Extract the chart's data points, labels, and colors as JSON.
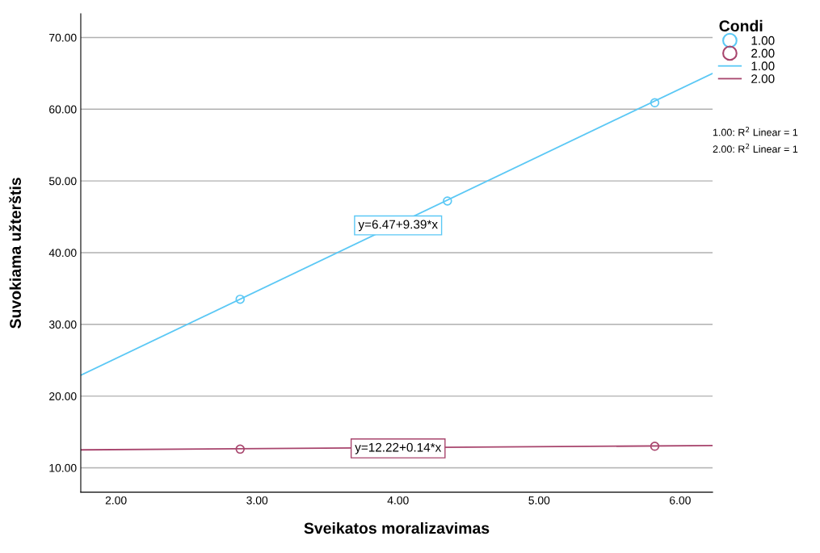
{
  "chart_data": {
    "type": "scatter",
    "xlabel": "Sveikatos moralizavimas",
    "ylabel": "Suvokiama užterštis",
    "legend_title": "Condi",
    "series": [
      {
        "name": "1.00",
        "color": "#5bc8f5",
        "x": [
          2.88,
          4.35,
          5.82
        ],
        "values": [
          33.5,
          47.2,
          60.9
        ]
      },
      {
        "name": "2.00",
        "color": "#a8456d",
        "x": [
          2.88,
          5.82
        ],
        "values": [
          12.6,
          13.0
        ]
      },
      {
        "name": "1.00",
        "type": "line",
        "marker": "none",
        "color": "#5bc8f5",
        "x": [
          1.75,
          6.23
        ],
        "values": [
          22.9,
          65.0
        ]
      },
      {
        "name": "2.00",
        "type": "line",
        "marker": "none",
        "color": "#a8456d",
        "x": [
          1.75,
          6.23
        ],
        "values": [
          12.5,
          13.1
        ]
      }
    ],
    "xlim": [
      1.75,
      6.23
    ],
    "xticks": [
      {
        "value": 2,
        "label": "2.00"
      },
      {
        "value": 3,
        "label": "3.00"
      },
      {
        "value": 4,
        "label": "4.00"
      },
      {
        "value": 5,
        "label": "5.00"
      },
      {
        "value": 6,
        "label": "6.00"
      }
    ],
    "ylim": [
      6.6,
      73.3
    ],
    "yticks": [
      {
        "value": 10,
        "label": "10.00"
      },
      {
        "value": 20,
        "label": "20.00"
      },
      {
        "value": 30,
        "label": "30.00"
      },
      {
        "value": 40,
        "label": "40.00"
      },
      {
        "value": 50,
        "label": "50.00"
      },
      {
        "value": 60,
        "label": "60.00"
      },
      {
        "value": 70,
        "label": "70.00"
      }
    ],
    "grid": "y",
    "legend": "top right",
    "marker": "circle",
    "annotations": [
      {
        "text": "y=6.47+9.39*x",
        "x": 4.0,
        "y": 43.8
      },
      {
        "text": "y=12.22+0.14*x",
        "x": 4.0,
        "y": 12.7
      },
      "1.00: R$^{2}$ Linear = 1",
      "2.00: R$^{2}$ Linear = 1"
    ]
  }
}
